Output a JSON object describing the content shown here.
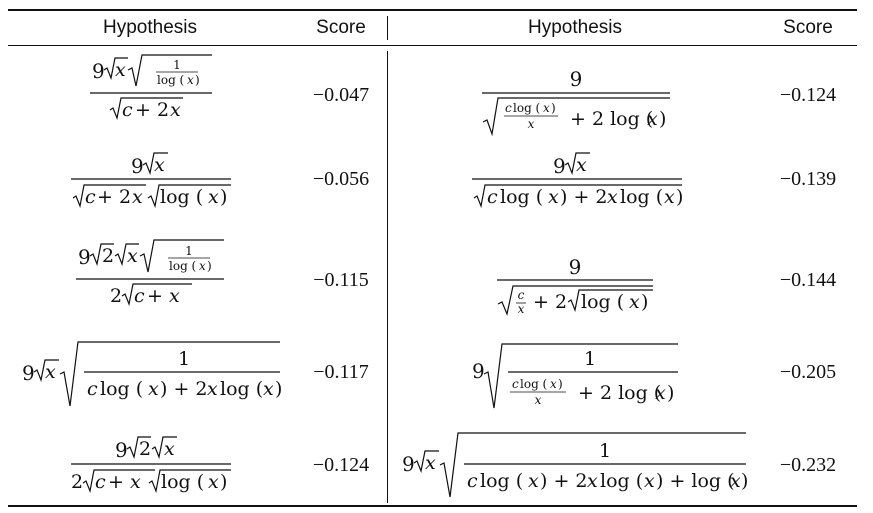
{
  "table": {
    "headers": {
      "left_hypothesis": "Hypothesis",
      "left_score": "Score",
      "right_hypothesis": "Hypothesis",
      "right_score": "Score"
    },
    "left_rows": [
      {
        "hypothesis": "9√x √(1/log(x)) / √(c+2x)",
        "score": "−0.047"
      },
      {
        "hypothesis": "9√x / (√(c+2x) √log(x))",
        "score": "−0.056"
      },
      {
        "hypothesis": "9√2 √x √(1/log(x)) / (2√(c+x))",
        "score": "−0.115"
      },
      {
        "hypothesis": "9√x √(1/(c log(x) + 2x log(x)))",
        "score": "−0.117"
      },
      {
        "hypothesis": "9√2 √x / (2√(c+x) √log(x))",
        "score": "−0.124"
      }
    ],
    "right_rows": [
      {
        "hypothesis": "9 / √(c log(x)/x + 2 log(x))",
        "score": "−0.124"
      },
      {
        "hypothesis": "9√x / √(c log(x) + 2x log(x))",
        "score": "−0.139"
      },
      {
        "hypothesis": "9 / √(c/x + 2√log(x))",
        "score": "−0.144"
      },
      {
        "hypothesis": "9 √(1/(c log(x)/x + 2 log(x)))",
        "score": "−0.205"
      },
      {
        "hypothesis": "9√x √(1/(c log(x) + 2x log(x) + log(x)))",
        "score": "−0.232"
      }
    ]
  }
}
